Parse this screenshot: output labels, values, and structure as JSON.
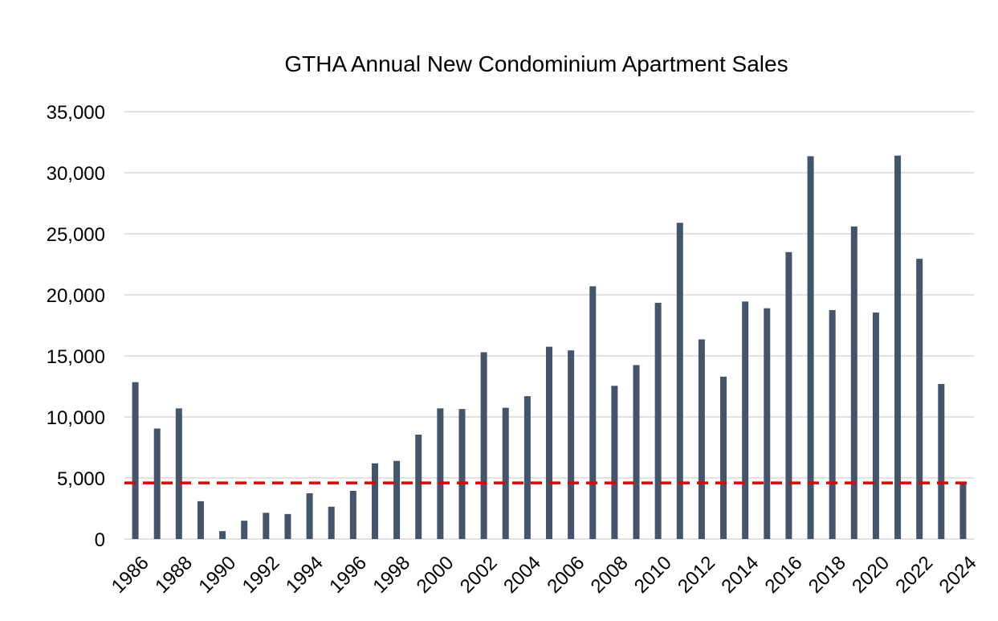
{
  "chart_data": {
    "type": "bar",
    "title": "GTHA Annual New Condominium Apartment Sales",
    "xlabel": "",
    "ylabel": "",
    "ylim": [
      0,
      35000
    ],
    "yticks": [
      0,
      5000,
      10000,
      15000,
      20000,
      25000,
      30000,
      35000
    ],
    "ytick_labels": [
      "0",
      "5,000",
      "10,000",
      "15,000",
      "20,000",
      "25,000",
      "30,000",
      "35,000"
    ],
    "categories": [
      "1986",
      "1987",
      "1988",
      "1989",
      "1990",
      "1991",
      "1992",
      "1993",
      "1994",
      "1995",
      "1996",
      "1997",
      "1998",
      "1999",
      "2000",
      "2001",
      "2002",
      "2003",
      "2004",
      "2005",
      "2006",
      "2007",
      "2008",
      "2009",
      "2010",
      "2011",
      "2012",
      "2013",
      "2014",
      "2015",
      "2016",
      "2017",
      "2018",
      "2019",
      "2020",
      "2021",
      "2022",
      "2023",
      "2024"
    ],
    "xtick_labels": [
      "1986",
      "1988",
      "1990",
      "1992",
      "1994",
      "1996",
      "1998",
      "2000",
      "2002",
      "2004",
      "2006",
      "2008",
      "2010",
      "2012",
      "2014",
      "2016",
      "2018",
      "2020",
      "2022",
      "2024"
    ],
    "values": [
      12850,
      9050,
      10700,
      3100,
      650,
      1500,
      2150,
      2050,
      3750,
      2650,
      3950,
      6200,
      6400,
      8550,
      10700,
      10650,
      15300,
      10750,
      11700,
      15750,
      15450,
      20700,
      12550,
      14250,
      19350,
      25900,
      16350,
      13300,
      19450,
      18900,
      23500,
      31350,
      18750,
      25600,
      18550,
      31400,
      22950,
      12700,
      4550
    ],
    "reference_line": {
      "value": 4600,
      "style": "dashed"
    },
    "bar_color": "#44546a",
    "reference_color": "#e00000",
    "grid": true,
    "legend": "none"
  }
}
